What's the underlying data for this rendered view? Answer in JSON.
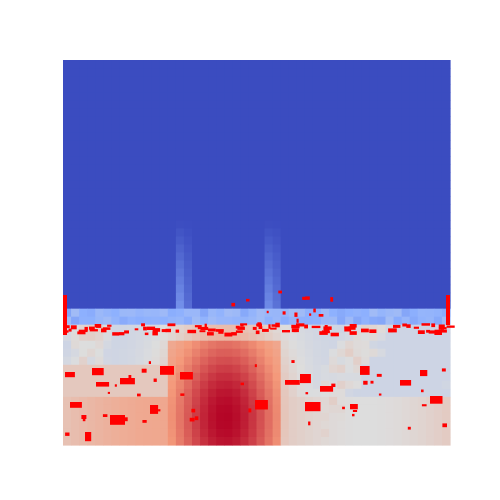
{
  "chart_data": {
    "type": "heatmap",
    "title": "",
    "xlabel": "",
    "ylabel": "",
    "axes_visible": false,
    "grid": false,
    "legend": "none",
    "colormap": "coolwarm",
    "colors": {
      "background": "#ffffff",
      "low": "#3b4cc0",
      "mid": "#dddddd",
      "high": "#b40426",
      "marker": "#ff0000"
    },
    "description_values": {
      "grid_rows": 48,
      "grid_cols": 48,
      "value_range": [
        0,
        1
      ]
    },
    "features": {
      "upper_region_value": 0.0,
      "plumes_x_fraction": [
        0.31,
        0.54
      ],
      "hot_core_x_fraction": 0.42,
      "hot_core_value": 1.0
    }
  }
}
